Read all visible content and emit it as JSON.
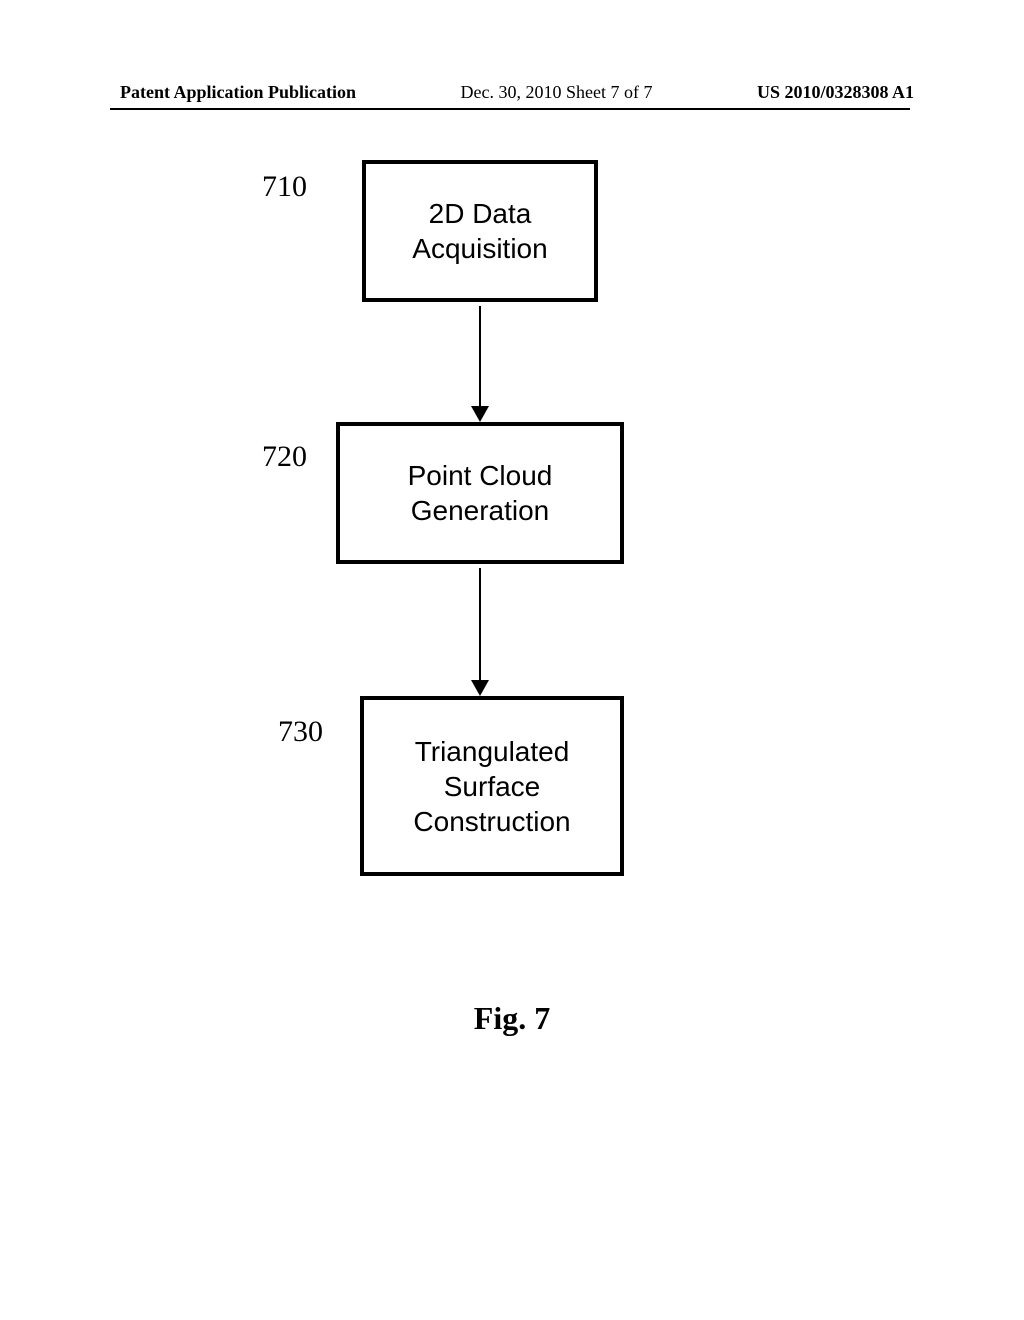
{
  "header": {
    "left": "Patent Application Publication",
    "center": "Dec. 30, 2010  Sheet 7 of 7",
    "right": "US 2010/0328308 A1"
  },
  "flowchart": {
    "type": "flowchart",
    "nodes": [
      {
        "id": "710",
        "label_number": "710",
        "text": "2D Data\nAcquisition"
      },
      {
        "id": "720",
        "label_number": "720",
        "text": "Point Cloud\nGeneration"
      },
      {
        "id": "730",
        "label_number": "730",
        "text": "Triangulated\nSurface\nConstruction"
      }
    ],
    "edges": [
      {
        "from": "710",
        "to": "720"
      },
      {
        "from": "720",
        "to": "730"
      }
    ],
    "box_border_color": "#000000",
    "box_border_width": 4,
    "box_font_size": 28,
    "label_font_size": 30,
    "arrow_color": "#000000",
    "arrow_line_width": 2,
    "background_color": "#ffffff"
  },
  "figure_caption": "Fig. 7"
}
